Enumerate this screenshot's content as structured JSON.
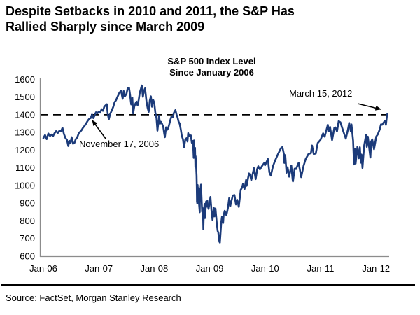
{
  "page": {
    "title_line1": "Despite Setbacks in 2010 and 2011, the S&P Has",
    "title_line2": "Rallied Sharply since March 2009",
    "source": "Source: FactSet, Morgan Stanley Research"
  },
  "colors": {
    "line": "#1c3b7a",
    "axis": "#8c8c8c",
    "reference": "#000000",
    "text": "#000000",
    "background": "#ffffff"
  },
  "chart_data": {
    "type": "line",
    "title": "S&P 500 Index Level",
    "subtitle": "Since January 2006",
    "xlabel": "",
    "ylabel": "",
    "ylim": [
      600,
      1600
    ],
    "grid": false,
    "legend_position": "none",
    "y_ticks": [
      600,
      700,
      800,
      900,
      1000,
      1100,
      1200,
      1300,
      1400,
      1500,
      1600
    ],
    "x_ticks": [
      {
        "label": "Jan-06",
        "t": 0
      },
      {
        "label": "Jan-07",
        "t": 1
      },
      {
        "label": "Jan-08",
        "t": 2
      },
      {
        "label": "Jan-09",
        "t": 3
      },
      {
        "label": "Jan-10",
        "t": 4
      },
      {
        "label": "Jan-11",
        "t": 5
      },
      {
        "label": "Jan-12",
        "t": 6
      }
    ],
    "reference_line": {
      "value": 1400,
      "style": "dashed"
    },
    "annotations": [
      {
        "label": "November 17, 2006",
        "t": 0.877,
        "value": 1401
      },
      {
        "label": "March 15, 2012",
        "t": 6.203,
        "value": 1403
      }
    ],
    "series": [
      {
        "name": "S&P 500 Index",
        "color": "#1c3b7a",
        "points": [
          [
            0.0,
            1268
          ],
          [
            0.03,
            1285
          ],
          [
            0.06,
            1262
          ],
          [
            0.09,
            1294
          ],
          [
            0.12,
            1280
          ],
          [
            0.15,
            1288
          ],
          [
            0.175,
            1280
          ],
          [
            0.2,
            1295
          ],
          [
            0.23,
            1307
          ],
          [
            0.26,
            1297
          ],
          [
            0.29,
            1310
          ],
          [
            0.32,
            1308
          ],
          [
            0.345,
            1326
          ],
          [
            0.37,
            1292
          ],
          [
            0.4,
            1267
          ],
          [
            0.425,
            1258
          ],
          [
            0.45,
            1223
          ],
          [
            0.47,
            1252
          ],
          [
            0.49,
            1240
          ],
          [
            0.51,
            1273
          ],
          [
            0.535,
            1236
          ],
          [
            0.56,
            1241
          ],
          [
            0.585,
            1262
          ],
          [
            0.61,
            1271
          ],
          [
            0.64,
            1297
          ],
          [
            0.665,
            1304
          ],
          [
            0.69,
            1313
          ],
          [
            0.715,
            1326
          ],
          [
            0.74,
            1336
          ],
          [
            0.77,
            1350
          ],
          [
            0.8,
            1366
          ],
          [
            0.83,
            1378
          ],
          [
            0.855,
            1381
          ],
          [
            0.877,
            1401
          ],
          [
            0.9,
            1381
          ],
          [
            0.925,
            1396
          ],
          [
            0.95,
            1414
          ],
          [
            0.975,
            1408
          ],
          [
            1.0,
            1418
          ],
          [
            1.025,
            1412
          ],
          [
            1.05,
            1431
          ],
          [
            1.075,
            1422
          ],
          [
            1.1,
            1446
          ],
          [
            1.13,
            1455
          ],
          [
            1.145,
            1459
          ],
          [
            1.16,
            1407
          ],
          [
            1.18,
            1374
          ],
          [
            1.205,
            1404
          ],
          [
            1.23,
            1421
          ],
          [
            1.26,
            1444
          ],
          [
            1.285,
            1471
          ],
          [
            1.31,
            1482
          ],
          [
            1.34,
            1503
          ],
          [
            1.37,
            1523
          ],
          [
            1.4,
            1536
          ],
          [
            1.43,
            1490
          ],
          [
            1.45,
            1533
          ],
          [
            1.47,
            1503
          ],
          [
            1.5,
            1519
          ],
          [
            1.52,
            1549
          ],
          [
            1.545,
            1553
          ],
          [
            1.565,
            1511
          ],
          [
            1.585,
            1458
          ],
          [
            1.605,
            1497
          ],
          [
            1.62,
            1407
          ],
          [
            1.64,
            1446
          ],
          [
            1.66,
            1463
          ],
          [
            1.68,
            1474
          ],
          [
            1.7,
            1453
          ],
          [
            1.72,
            1484
          ],
          [
            1.74,
            1525
          ],
          [
            1.76,
            1547
          ],
          [
            1.775,
            1565
          ],
          [
            1.795,
            1501
          ],
          [
            1.815,
            1535
          ],
          [
            1.835,
            1549
          ],
          [
            1.86,
            1475
          ],
          [
            1.88,
            1439
          ],
          [
            1.9,
            1416
          ],
          [
            1.92,
            1481
          ],
          [
            1.94,
            1504
          ],
          [
            1.96,
            1445
          ],
          [
            1.98,
            1485
          ],
          [
            2.0,
            1468
          ],
          [
            2.02,
            1411
          ],
          [
            2.04,
            1381
          ],
          [
            2.058,
            1310
          ],
          [
            2.073,
            1353
          ],
          [
            2.087,
            1395
          ],
          [
            2.103,
            1349
          ],
          [
            2.12,
            1360
          ],
          [
            2.14,
            1349
          ],
          [
            2.163,
            1331
          ],
          [
            2.18,
            1293
          ],
          [
            2.192,
            1273
          ],
          [
            2.214,
            1329
          ],
          [
            2.233,
            1315
          ],
          [
            2.25,
            1323
          ],
          [
            2.27,
            1345
          ],
          [
            2.29,
            1370
          ],
          [
            2.31,
            1390
          ],
          [
            2.333,
            1386
          ],
          [
            2.357,
            1413
          ],
          [
            2.383,
            1426
          ],
          [
            2.403,
            1400
          ],
          [
            2.42,
            1385
          ],
          [
            2.44,
            1361
          ],
          [
            2.458,
            1350
          ],
          [
            2.478,
            1318
          ],
          [
            2.497,
            1280
          ],
          [
            2.518,
            1262
          ],
          [
            2.538,
            1215
          ],
          [
            2.56,
            1260
          ],
          [
            2.582,
            1267
          ],
          [
            2.6,
            1249
          ],
          [
            2.612,
            1296
          ],
          [
            2.632,
            1278
          ],
          [
            2.66,
            1283
          ],
          [
            2.678,
            1242
          ],
          [
            2.7,
            1252
          ],
          [
            2.712,
            1156
          ],
          [
            2.718,
            1255
          ],
          [
            2.725,
            1207
          ],
          [
            2.736,
            1213
          ],
          [
            2.742,
            1106
          ],
          [
            2.746,
            1166
          ],
          [
            2.755,
            1114
          ],
          [
            2.764,
            1056
          ],
          [
            2.768,
            996
          ],
          [
            2.772,
            910
          ],
          [
            2.776,
            899
          ],
          [
            2.783,
            1003
          ],
          [
            2.789,
            908
          ],
          [
            2.794,
            940
          ],
          [
            2.803,
            985
          ],
          [
            2.808,
            897
          ],
          [
            2.821,
            849
          ],
          [
            2.825,
            940
          ],
          [
            2.832,
            969
          ],
          [
            2.843,
            1005
          ],
          [
            2.864,
            852
          ],
          [
            2.87,
            873
          ],
          [
            2.883,
            807
          ],
          [
            2.886,
            752
          ],
          [
            2.89,
            800
          ],
          [
            2.897,
            851
          ],
          [
            2.908,
            896
          ],
          [
            2.917,
            816
          ],
          [
            2.936,
            909
          ],
          [
            2.947,
            880
          ],
          [
            2.958,
            913
          ],
          [
            2.966,
            888
          ],
          [
            2.98,
            868
          ],
          [
            2.999,
            903
          ],
          [
            3.014,
            935
          ],
          [
            3.036,
            843
          ],
          [
            3.052,
            805
          ],
          [
            3.074,
            874
          ],
          [
            3.086,
            825
          ],
          [
            3.105,
            870
          ],
          [
            3.127,
            789
          ],
          [
            3.144,
            743
          ],
          [
            3.155,
            735
          ],
          [
            3.173,
            683
          ],
          [
            3.184,
            677
          ],
          [
            3.209,
            794
          ],
          [
            3.222,
            823
          ],
          [
            3.242,
            788
          ],
          [
            3.253,
            834
          ],
          [
            3.272,
            857
          ],
          [
            3.302,
            832
          ],
          [
            3.33,
            873
          ],
          [
            3.352,
            929
          ],
          [
            3.371,
            883
          ],
          [
            3.385,
            903
          ],
          [
            3.417,
            943
          ],
          [
            3.447,
            946
          ],
          [
            3.475,
            893
          ],
          [
            3.497,
            919
          ],
          [
            3.525,
            879
          ],
          [
            3.561,
            976
          ],
          [
            3.583,
            987
          ],
          [
            3.602,
            1010
          ],
          [
            3.629,
            980
          ],
          [
            3.657,
            1031
          ],
          [
            3.667,
            998
          ],
          [
            3.708,
            1068
          ],
          [
            3.728,
            1061
          ],
          [
            3.75,
            1030
          ],
          [
            3.799,
            1098
          ],
          [
            3.829,
            1036
          ],
          [
            3.857,
            1093
          ],
          [
            3.876,
            1109
          ],
          [
            3.906,
            1091
          ],
          [
            3.953,
            1114
          ],
          [
            3.981,
            1126
          ],
          [
            3.999,
            1115
          ],
          [
            4.05,
            1150
          ],
          [
            4.077,
            1074
          ],
          [
            4.103,
            1056
          ],
          [
            4.141,
            1108
          ],
          [
            4.178,
            1139
          ],
          [
            4.227,
            1174
          ],
          [
            4.287,
            1211
          ],
          [
            4.312,
            1217
          ],
          [
            4.342,
            1174
          ],
          [
            4.347,
            1128
          ],
          [
            4.364,
            1172
          ],
          [
            4.386,
            1072
          ],
          [
            4.405,
            1103
          ],
          [
            4.434,
            1050
          ],
          [
            4.472,
            1113
          ],
          [
            4.497,
            1031
          ],
          [
            4.503,
            1023
          ],
          [
            4.533,
            1095
          ],
          [
            4.558,
            1093
          ],
          [
            4.605,
            1128
          ],
          [
            4.652,
            1047
          ],
          [
            4.693,
            1110
          ],
          [
            4.731,
            1149
          ],
          [
            4.783,
            1178
          ],
          [
            4.827,
            1183
          ],
          [
            4.846,
            1226
          ],
          [
            4.876,
            1178
          ],
          [
            4.914,
            1181
          ],
          [
            4.95,
            1240
          ],
          [
            4.999,
            1258
          ],
          [
            5.047,
            1295
          ],
          [
            5.074,
            1276
          ],
          [
            5.131,
            1343
          ],
          [
            5.148,
            1306
          ],
          [
            5.172,
            1331
          ],
          [
            5.208,
            1257
          ],
          [
            5.249,
            1326
          ],
          [
            5.269,
            1328
          ],
          [
            5.297,
            1305
          ],
          [
            5.327,
            1364
          ],
          [
            5.358,
            1357
          ],
          [
            5.399,
            1317
          ],
          [
            5.456,
            1265
          ],
          [
            5.497,
            1321
          ],
          [
            5.516,
            1354
          ],
          [
            5.547,
            1305
          ],
          [
            5.558,
            1345
          ],
          [
            5.587,
            1254
          ],
          [
            5.603,
            1119
          ],
          [
            5.606,
            1172
          ],
          [
            5.609,
            1121
          ],
          [
            5.622,
            1205
          ],
          [
            5.633,
            1124
          ],
          [
            5.666,
            1219
          ],
          [
            5.69,
            1154
          ],
          [
            5.709,
            1216
          ],
          [
            5.726,
            1129
          ],
          [
            5.74,
            1175
          ],
          [
            5.756,
            1099
          ],
          [
            5.786,
            1225
          ],
          [
            5.821,
            1285
          ],
          [
            5.834,
            1218
          ],
          [
            5.853,
            1276
          ],
          [
            5.899,
            1158
          ],
          [
            5.913,
            1247
          ],
          [
            5.932,
            1261
          ],
          [
            5.965,
            1205
          ],
          [
            5.995,
            1258
          ],
          [
            6.005,
            1277
          ],
          [
            6.033,
            1289
          ],
          [
            6.068,
            1318
          ],
          [
            6.09,
            1345
          ],
          [
            6.109,
            1343
          ],
          [
            6.161,
            1366
          ],
          [
            6.179,
            1343
          ],
          [
            6.198,
            1396
          ],
          [
            6.203,
            1403
          ]
        ]
      }
    ]
  }
}
